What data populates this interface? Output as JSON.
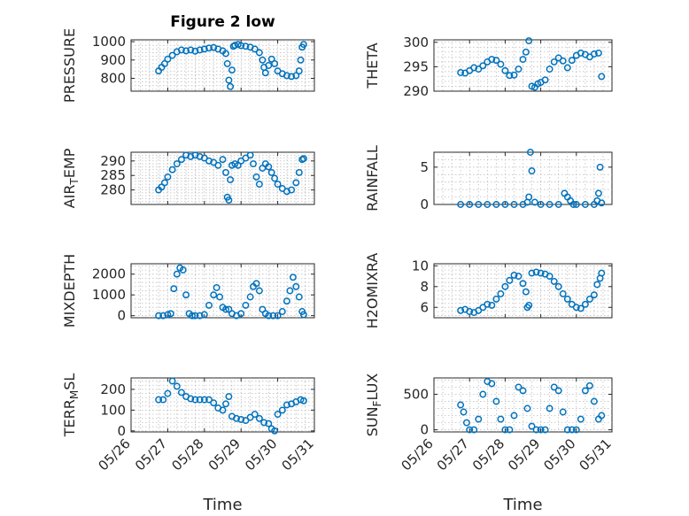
{
  "figure": {
    "title": "Figure 2 low",
    "marker_color": "#0072BD",
    "xlabel": "Time",
    "x_tick_labels": [
      "05/26",
      "05/27",
      "05/28",
      "05/29",
      "05/30",
      "05/31"
    ]
  },
  "chart_data": [
    {
      "type": "scatter",
      "ylabel": "PRESSURE",
      "ylim": [
        730,
        1010
      ],
      "yticks": [
        800,
        900,
        1000
      ],
      "grid": true,
      "x": [
        "05/26 18:00",
        "05/26 20:00",
        "05/26 22:00",
        "05/27 00:00",
        "05/27 03:00",
        "05/27 06:00",
        "05/27 09:00",
        "05/27 12:00",
        "05/27 15:00",
        "05/27 18:00",
        "05/27 21:00",
        "05/28 00:00",
        "05/28 03:00",
        "05/28 06:00",
        "05/28 09:00",
        "05/28 12:00",
        "05/28 14:00",
        "05/28 15:00",
        "05/28 16:00",
        "05/28 17:00",
        "05/28 18:00",
        "05/28 19:00",
        "05/28 20:00",
        "05/28 22:00",
        "05/29 00:00",
        "05/29 03:00",
        "05/29 06:00",
        "05/29 09:00",
        "05/29 12:00",
        "05/29 14:00",
        "05/29 15:00",
        "05/29 16:00",
        "05/29 18:00",
        "05/29 20:00",
        "05/29 22:00",
        "05/30 00:00",
        "05/30 03:00",
        "05/30 06:00",
        "05/30 09:00",
        "05/30 12:00",
        "05/30 14:00",
        "05/30 15:00",
        "05/30 16:00",
        "05/30 17:00"
      ],
      "y": [
        840,
        860,
        880,
        905,
        925,
        945,
        955,
        950,
        955,
        948,
        955,
        960,
        965,
        968,
        960,
        950,
        935,
        880,
        790,
        755,
        845,
        975,
        980,
        985,
        978,
        975,
        970,
        960,
        940,
        900,
        860,
        830,
        870,
        905,
        880,
        840,
        825,
        815,
        810,
        815,
        840,
        900,
        970,
        985
      ]
    },
    {
      "type": "scatter",
      "ylabel": "THETA",
      "ylim": [
        290,
        300.5
      ],
      "yticks": [
        290,
        295,
        300
      ],
      "grid": true,
      "x": [
        "05/26 18:00",
        "05/26 21:00",
        "05/27 00:00",
        "05/27 03:00",
        "05/27 06:00",
        "05/27 09:00",
        "05/27 12:00",
        "05/27 15:00",
        "05/27 18:00",
        "05/27 21:00",
        "05/28 00:00",
        "05/28 03:00",
        "05/28 06:00",
        "05/28 09:00",
        "05/28 12:00",
        "05/28 14:00",
        "05/28 16:00",
        "05/28 18:00",
        "05/28 20:00",
        "05/28 22:00",
        "05/29 00:00",
        "05/29 03:00",
        "05/29 06:00",
        "05/29 09:00",
        "05/29 12:00",
        "05/29 15:00",
        "05/29 18:00",
        "05/29 21:00",
        "05/30 00:00",
        "05/30 03:00",
        "05/30 06:00",
        "05/30 09:00",
        "05/30 12:00",
        "05/30 15:00",
        "05/30 17:00"
      ],
      "y": [
        293.8,
        293.7,
        294.2,
        294.8,
        294.5,
        295.2,
        296.0,
        296.5,
        296.3,
        295.5,
        294.2,
        293.2,
        293.3,
        294.5,
        296.5,
        298.0,
        300.3,
        291.0,
        290.8,
        291.5,
        291.8,
        292.3,
        294.5,
        296.0,
        296.8,
        296.2,
        294.8,
        296.3,
        297.3,
        297.8,
        297.5,
        297.0,
        297.6,
        297.8,
        293.0
      ]
    },
    {
      "type": "scatter",
      "ylabel": "AIR_TEMP",
      "ylim": [
        275,
        293
      ],
      "yticks": [
        280,
        285,
        290
      ],
      "grid": true,
      "x": [
        "05/26 18:00",
        "05/26 20:00",
        "05/26 22:00",
        "05/27 00:00",
        "05/27 03:00",
        "05/27 06:00",
        "05/27 09:00",
        "05/27 12:00",
        "05/27 15:00",
        "05/27 18:00",
        "05/27 21:00",
        "05/28 00:00",
        "05/28 03:00",
        "05/28 06:00",
        "05/28 09:00",
        "05/28 12:00",
        "05/28 14:00",
        "05/28 15:00",
        "05/28 16:00",
        "05/28 17:00",
        "05/28 18:00",
        "05/28 20:00",
        "05/28 22:00",
        "05/29 00:00",
        "05/29 03:00",
        "05/29 06:00",
        "05/29 08:00",
        "05/29 10:00",
        "05/29 12:00",
        "05/29 14:00",
        "05/29 16:00",
        "05/29 18:00",
        "05/29 20:00",
        "05/29 22:00",
        "05/30 00:00",
        "05/30 03:00",
        "05/30 06:00",
        "05/30 09:00",
        "05/30 12:00",
        "05/30 14:00",
        "05/30 16:00",
        "05/30 17:00"
      ],
      "y": [
        280.0,
        281.0,
        282.5,
        284.5,
        287.0,
        289.0,
        290.5,
        292.0,
        291.5,
        292.0,
        291.5,
        291.0,
        290.0,
        289.5,
        288.5,
        290.5,
        286.0,
        277.5,
        276.5,
        283.5,
        288.5,
        289.0,
        288.5,
        290.0,
        291.0,
        292.0,
        289.0,
        284.5,
        282.0,
        287.5,
        289.0,
        288.0,
        286.0,
        284.0,
        282.0,
        280.5,
        279.5,
        280.0,
        282.5,
        286.0,
        290.5,
        290.8
      ]
    },
    {
      "type": "scatter",
      "ylabel": "RAINFALL",
      "ylim": [
        0,
        7
      ],
      "yticks": [
        0,
        5
      ],
      "grid": true,
      "x": [
        "05/26 18:00",
        "05/27 00:00",
        "05/27 06:00",
        "05/27 12:00",
        "05/27 18:00",
        "05/28 00:00",
        "05/28 06:00",
        "05/28 12:00",
        "05/28 15:00",
        "05/28 16:00",
        "05/28 17:00",
        "05/28 18:00",
        "05/28 20:00",
        "05/29 00:00",
        "05/29 06:00",
        "05/29 12:00",
        "05/29 16:00",
        "05/29 18:00",
        "05/29 20:00",
        "05/29 22:00",
        "05/30 00:00",
        "05/30 06:00",
        "05/30 12:00",
        "05/30 14:00",
        "05/30 15:00",
        "05/30 16:00",
        "05/30 17:00"
      ],
      "y": [
        0,
        0,
        0,
        0,
        0,
        0,
        0,
        0,
        0.3,
        1.0,
        7.0,
        4.5,
        0.3,
        0,
        0,
        0,
        1.5,
        1.0,
        0.5,
        0,
        0,
        0,
        0,
        0.5,
        1.5,
        5.0,
        0.2
      ]
    },
    {
      "type": "scatter",
      "ylabel": "MIXDEPTH",
      "ylim": [
        -100,
        2500
      ],
      "yticks": [
        0,
        1000,
        2000
      ],
      "grid": true,
      "x": [
        "05/26 18:00",
        "05/26 21:00",
        "05/27 00:00",
        "05/27 02:00",
        "05/27 04:00",
        "05/27 06:00",
        "05/27 08:00",
        "05/27 10:00",
        "05/27 12:00",
        "05/27 14:00",
        "05/27 16:00",
        "05/27 18:00",
        "05/27 21:00",
        "05/28 00:00",
        "05/28 03:00",
        "05/28 06:00",
        "05/28 08:00",
        "05/28 10:00",
        "05/28 12:00",
        "05/28 14:00",
        "05/28 16:00",
        "05/28 18:00",
        "05/28 21:00",
        "05/29 00:00",
        "05/29 03:00",
        "05/29 06:00",
        "05/29 08:00",
        "05/29 10:00",
        "05/29 12:00",
        "05/29 14:00",
        "05/29 16:00",
        "05/29 18:00",
        "05/29 21:00",
        "05/30 00:00",
        "05/30 03:00",
        "05/30 06:00",
        "05/30 08:00",
        "05/30 10:00",
        "05/30 12:00",
        "05/30 14:00",
        "05/30 16:00",
        "05/30 17:00"
      ],
      "y": [
        0,
        0,
        50,
        100,
        1300,
        2000,
        2300,
        2200,
        1000,
        100,
        0,
        0,
        0,
        50,
        500,
        1000,
        1350,
        900,
        400,
        300,
        300,
        100,
        0,
        100,
        500,
        900,
        1400,
        1550,
        1200,
        300,
        100,
        0,
        0,
        0,
        200,
        700,
        1200,
        1850,
        1400,
        900,
        200,
        50
      ]
    },
    {
      "type": "scatter",
      "ylabel": "H2OMIXRA",
      "ylim": [
        5,
        10.2
      ],
      "yticks": [
        6,
        8,
        10
      ],
      "grid": true,
      "x": [
        "05/26 18:00",
        "05/26 21:00",
        "05/27 00:00",
        "05/27 03:00",
        "05/27 06:00",
        "05/27 09:00",
        "05/27 12:00",
        "05/27 15:00",
        "05/27 18:00",
        "05/27 21:00",
        "05/28 00:00",
        "05/28 03:00",
        "05/28 06:00",
        "05/28 09:00",
        "05/28 12:00",
        "05/28 14:00",
        "05/28 15:00",
        "05/28 16:00",
        "05/28 18:00",
        "05/28 21:00",
        "05/29 00:00",
        "05/29 03:00",
        "05/29 06:00",
        "05/29 09:00",
        "05/29 12:00",
        "05/29 15:00",
        "05/29 18:00",
        "05/29 21:00",
        "05/30 00:00",
        "05/30 03:00",
        "05/30 06:00",
        "05/30 09:00",
        "05/30 12:00",
        "05/30 14:00",
        "05/30 16:00",
        "05/30 17:00"
      ],
      "y": [
        5.7,
        5.8,
        5.6,
        5.5,
        5.7,
        6.0,
        6.3,
        6.2,
        6.8,
        7.3,
        8.0,
        8.6,
        9.1,
        9.0,
        8.3,
        7.5,
        6.0,
        6.2,
        9.3,
        9.4,
        9.3,
        9.2,
        9.0,
        8.5,
        8.0,
        7.3,
        6.8,
        6.3,
        6.0,
        5.9,
        6.3,
        6.8,
        7.2,
        8.2,
        8.8,
        9.3
      ]
    },
    {
      "type": "scatter",
      "ylabel": "TERR_MSL",
      "ylim": [
        -5,
        255
      ],
      "yticks": [
        0,
        100,
        200
      ],
      "grid": true,
      "x": [
        "05/26 18:00",
        "05/26 21:00",
        "05/27 00:00",
        "05/27 03:00",
        "05/27 06:00",
        "05/27 09:00",
        "05/27 12:00",
        "05/27 15:00",
        "05/27 18:00",
        "05/27 21:00",
        "05/28 00:00",
        "05/28 03:00",
        "05/28 06:00",
        "05/28 09:00",
        "05/28 12:00",
        "05/28 14:00",
        "05/28 16:00",
        "05/28 18:00",
        "05/28 21:00",
        "05/29 00:00",
        "05/29 03:00",
        "05/29 06:00",
        "05/29 09:00",
        "05/29 12:00",
        "05/29 15:00",
        "05/29 18:00",
        "05/29 20:00",
        "05/29 22:00",
        "05/30 00:00",
        "05/30 03:00",
        "05/30 06:00",
        "05/30 09:00",
        "05/30 12:00",
        "05/30 15:00",
        "05/30 17:00"
      ],
      "y": [
        150,
        150,
        180,
        240,
        215,
        185,
        165,
        155,
        150,
        150,
        150,
        150,
        135,
        110,
        100,
        130,
        165,
        70,
        60,
        55,
        50,
        65,
        80,
        60,
        40,
        35,
        10,
        0,
        80,
        100,
        125,
        130,
        140,
        150,
        145
      ]
    },
    {
      "type": "scatter",
      "ylabel": "SUN_FLUX",
      "ylim": [
        -30,
        730
      ],
      "yticks": [
        0,
        500
      ],
      "grid": true,
      "x": [
        "05/26 18:00",
        "05/26 20:00",
        "05/26 22:00",
        "05/27 00:00",
        "05/27 03:00",
        "05/27 06:00",
        "05/27 09:00",
        "05/27 12:00",
        "05/27 15:00",
        "05/27 18:00",
        "05/27 21:00",
        "05/28 00:00",
        "05/28 03:00",
        "05/28 06:00",
        "05/28 09:00",
        "05/28 12:00",
        "05/28 15:00",
        "05/28 18:00",
        "05/28 21:00",
        "05/29 00:00",
        "05/29 03:00",
        "05/29 06:00",
        "05/29 09:00",
        "05/29 12:00",
        "05/29 15:00",
        "05/29 18:00",
        "05/29 21:00",
        "05/30 00:00",
        "05/30 03:00",
        "05/30 06:00",
        "05/30 09:00",
        "05/30 12:00",
        "05/30 15:00",
        "05/30 17:00"
      ],
      "y": [
        350,
        250,
        100,
        0,
        0,
        150,
        500,
        680,
        650,
        400,
        150,
        0,
        0,
        200,
        600,
        550,
        300,
        50,
        0,
        0,
        0,
        300,
        600,
        550,
        250,
        0,
        0,
        0,
        150,
        550,
        620,
        400,
        150,
        200
      ]
    }
  ]
}
